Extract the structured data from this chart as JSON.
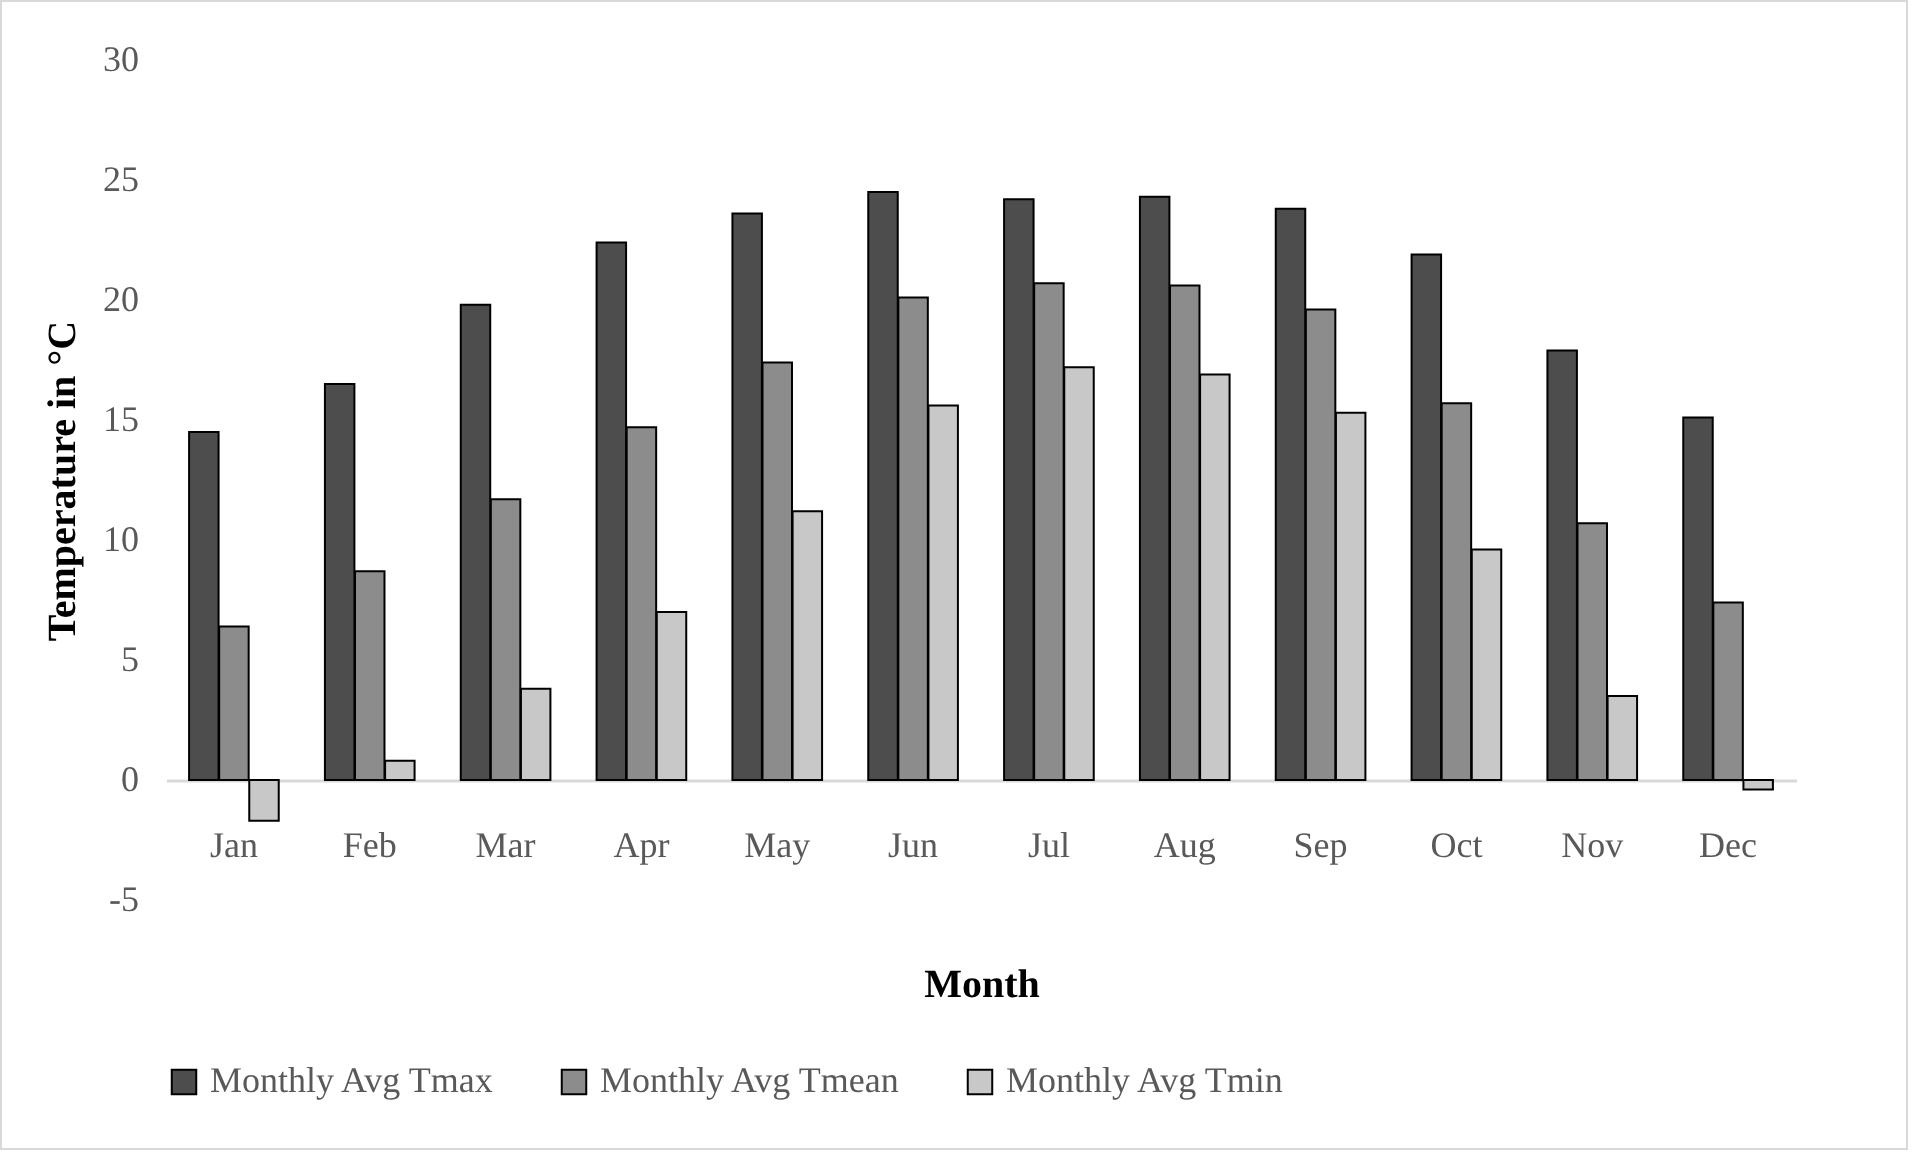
{
  "chart_data": {
    "type": "bar",
    "xlabel": "Month",
    "ylabel": "Temperature in °C",
    "categories": [
      "Jan",
      "Feb",
      "Mar",
      "Apr",
      "May",
      "Jun",
      "Jul",
      "Aug",
      "Sep",
      "Oct",
      "Nov",
      "Dec"
    ],
    "series": [
      {
        "name": "Monthly Avg Tmax",
        "color": "#4d4d4d",
        "values": [
          14.5,
          16.5,
          19.8,
          22.4,
          23.6,
          24.5,
          24.2,
          24.3,
          23.8,
          21.9,
          17.9,
          15.1
        ]
      },
      {
        "name": "Monthly Avg Tmean",
        "color": "#8c8c8c",
        "values": [
          6.4,
          8.7,
          11.7,
          14.7,
          17.4,
          20.1,
          20.7,
          20.6,
          19.6,
          15.7,
          10.7,
          7.4
        ]
      },
      {
        "name": "Monthly Avg Tmin",
        "color": "#c8c8c8",
        "values": [
          -1.7,
          0.8,
          3.8,
          7.0,
          11.2,
          15.6,
          17.2,
          16.9,
          15.3,
          9.6,
          3.5,
          -0.4
        ]
      }
    ],
    "ylim": [
      -5,
      30
    ],
    "yticks": [
      -5,
      0,
      5,
      10,
      15,
      20,
      25,
      30
    ],
    "grid": false,
    "legend": "bottom"
  }
}
